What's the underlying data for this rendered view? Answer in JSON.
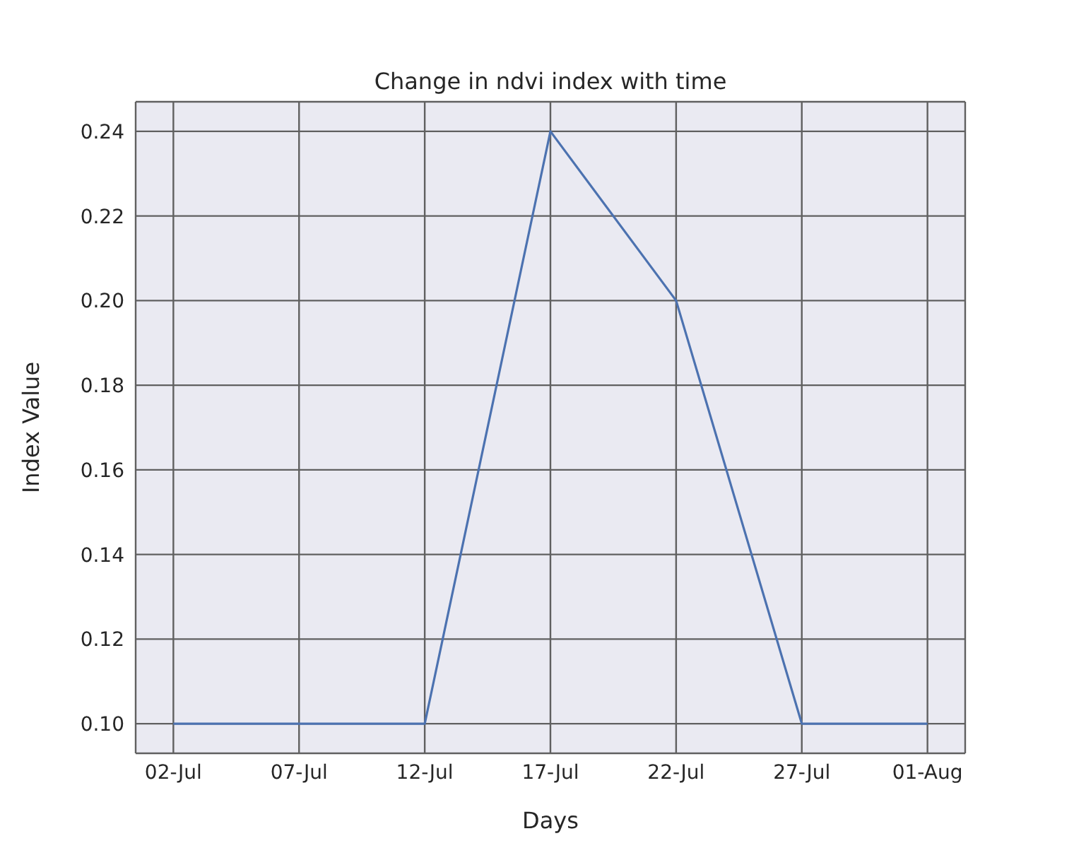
{
  "chart_data": {
    "type": "line",
    "title": "Change in ndvi index with time",
    "xlabel": "Days",
    "ylabel": "Index Value",
    "x": [
      "--07-02",
      "--07-07",
      "--07-12",
      "--07-17",
      "--07-22",
      "--07-27",
      "--08-01"
    ],
    "series": [
      {
        "color": "#4c72b0",
        "values": [
          0.1,
          0.1,
          0.1,
          0.24,
          0.2,
          0.1,
          0.1
        ]
      }
    ],
    "xlim": [
      "--06-30T12:00",
      "--08-02T12:00"
    ],
    "xticks": [
      {
        "value": "--07-02",
        "label": "02-Jul"
      },
      {
        "value": "--07-07",
        "label": "07-Jul"
      },
      {
        "value": "--07-12",
        "label": "12-Jul"
      },
      {
        "value": "--07-17",
        "label": "17-Jul"
      },
      {
        "value": "--07-22",
        "label": "22-Jul"
      },
      {
        "value": "--07-27",
        "label": "27-Jul"
      },
      {
        "value": "--08-01",
        "label": "01-Aug"
      }
    ],
    "ylim": [
      0.093,
      0.247
    ],
    "yticks": [
      {
        "value": 0.1,
        "label": "0.10"
      },
      {
        "value": 0.12,
        "label": "0.12"
      },
      {
        "value": 0.14,
        "label": "0.14"
      },
      {
        "value": 0.16,
        "label": "0.16"
      },
      {
        "value": 0.18,
        "label": "0.18"
      },
      {
        "value": 0.2,
        "label": "0.20"
      },
      {
        "value": 0.22,
        "label": "0.22"
      },
      {
        "value": 0.24,
        "label": "0.24"
      }
    ],
    "grid": true,
    "legend": false
  }
}
